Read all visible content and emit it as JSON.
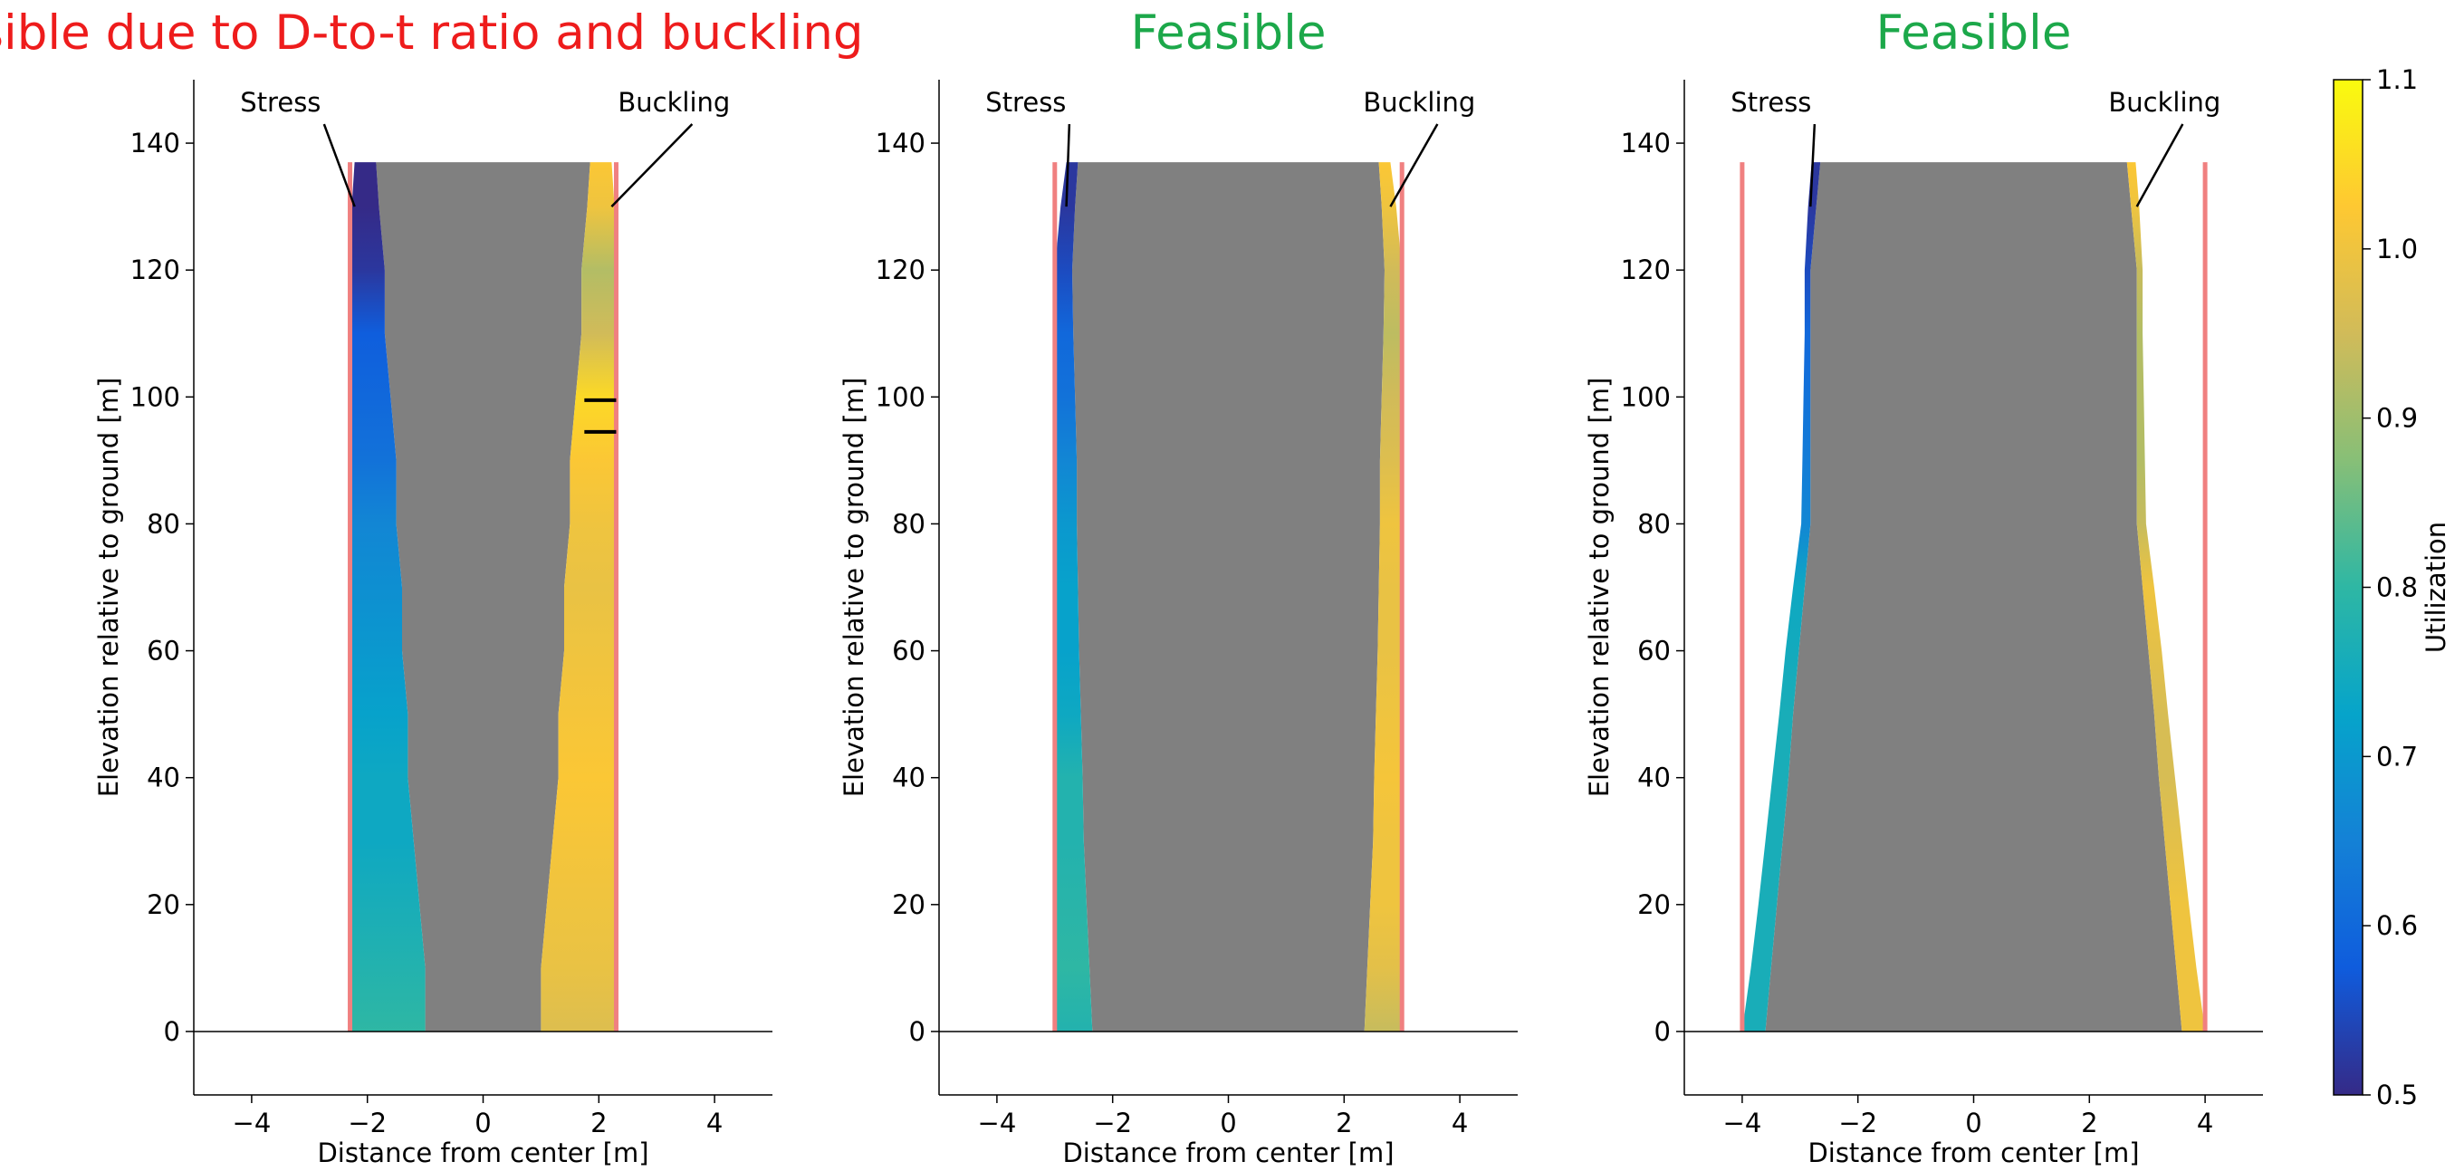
{
  "chart_data": {
    "panels": [
      {
        "type": "area",
        "title": "Infeasible due to D-to-t ratio and buckling",
        "title_color": "#ee1c1c",
        "xlabel": "Distance from center [m]",
        "ylabel": "Elevation relative to ground [m]",
        "xlim": [
          -5,
          5
        ],
        "ylim": [
          -10,
          150
        ],
        "xticks": [
          -4,
          -2,
          0,
          2,
          4
        ],
        "yticks": [
          0,
          20,
          40,
          60,
          80,
          100,
          120,
          140
        ],
        "outer_diameter_limit": 2.3,
        "tower_top": 137,
        "annotations": [
          {
            "text": "Stress",
            "point": [
              -2.22,
              130
            ],
            "text_pos": [
              -3.5,
              145
            ]
          },
          {
            "text": "Buckling",
            "point": [
              2.22,
              130
            ],
            "text_pos": [
              3.3,
              145
            ]
          }
        ],
        "flagged_segments": [
          99.5,
          94.5
        ],
        "series": [
          {
            "name": "outer_radius",
            "z": [
              0,
              10,
              20,
              30,
              40,
              50,
              60,
              70,
              80,
              90,
              100,
              110,
              120,
              130,
              137
            ],
            "r": [
              2.3,
              2.3,
              2.3,
              2.3,
              2.3,
              2.3,
              2.3,
              2.3,
              2.3,
              2.3,
              2.3,
              2.3,
              2.3,
              2.27,
              2.22
            ]
          },
          {
            "name": "inner_radius",
            "z": [
              0,
              10,
              20,
              30,
              40,
              50,
              60,
              70,
              80,
              90,
              100,
              110,
              120,
              130,
              137
            ],
            "r": [
              1.0,
              1.0,
              1.1,
              1.2,
              1.3,
              1.3,
              1.4,
              1.4,
              1.5,
              1.5,
              1.6,
              1.7,
              1.7,
              1.8,
              1.85
            ]
          },
          {
            "name": "stress_utilization",
            "z": [
              0,
              10,
              20,
              30,
              40,
              50,
              60,
              70,
              80,
              90,
              100,
              110,
              120,
              130,
              137
            ],
            "u": [
              0.8,
              0.78,
              0.76,
              0.74,
              0.74,
              0.72,
              0.7,
              0.68,
              0.66,
              0.62,
              0.6,
              0.58,
              0.52,
              0.5,
              0.5
            ]
          },
          {
            "name": "buckling_utilization",
            "z": [
              0,
              10,
              20,
              30,
              40,
              50,
              60,
              70,
              80,
              90,
              100,
              110,
              120,
              130,
              137
            ],
            "u": [
              0.97,
              0.99,
              1.0,
              1.01,
              1.02,
              1.01,
              1.0,
              0.99,
              1.0,
              1.02,
              1.05,
              0.95,
              0.92,
              1.0,
              1.02
            ]
          }
        ]
      },
      {
        "type": "area",
        "title": "Feasible",
        "title_color": "#1ca84a",
        "xlabel": "Distance from center [m]",
        "ylabel": "Elevation relative to ground [m]",
        "xlim": [
          -5,
          5
        ],
        "ylim": [
          -10,
          150
        ],
        "xticks": [
          -4,
          -2,
          0,
          2,
          4
        ],
        "yticks": [
          0,
          20,
          40,
          60,
          80,
          100,
          120,
          140
        ],
        "outer_diameter_limit": 3.0,
        "tower_top": 137,
        "annotations": [
          {
            "text": "Stress",
            "point": [
              -2.8,
              130
            ],
            "text_pos": [
              -3.5,
              145
            ]
          },
          {
            "text": "Buckling",
            "point": [
              2.8,
              130
            ],
            "text_pos": [
              3.3,
              145
            ]
          }
        ],
        "flagged_segments": [],
        "series": [
          {
            "name": "outer_radius",
            "z": [
              0,
              10,
              20,
              30,
              40,
              50,
              60,
              70,
              80,
              90,
              100,
              110,
              120,
              130,
              137
            ],
            "r": [
              3.0,
              3.0,
              3.0,
              3.0,
              3.0,
              3.0,
              3.0,
              3.0,
              3.0,
              3.0,
              3.0,
              3.0,
              3.0,
              2.9,
              2.8
            ]
          },
          {
            "name": "inner_radius",
            "z": [
              0,
              10,
              20,
              30,
              40,
              50,
              60,
              70,
              80,
              90,
              100,
              110,
              120,
              130,
              137
            ],
            "r": [
              2.35,
              2.4,
              2.45,
              2.5,
              2.52,
              2.55,
              2.58,
              2.6,
              2.62,
              2.62,
              2.65,
              2.68,
              2.7,
              2.65,
              2.6
            ]
          },
          {
            "name": "stress_utilization",
            "z": [
              0,
              10,
              20,
              30,
              40,
              50,
              60,
              70,
              80,
              90,
              100,
              110,
              120,
              130,
              137
            ],
            "u": [
              0.78,
              0.8,
              0.79,
              0.78,
              0.78,
              0.74,
              0.72,
              0.72,
              0.7,
              0.66,
              0.62,
              0.6,
              0.55,
              0.52,
              0.52
            ]
          },
          {
            "name": "buckling_utilization",
            "z": [
              0,
              10,
              20,
              30,
              40,
              50,
              60,
              70,
              80,
              90,
              100,
              110,
              120,
              130,
              137
            ],
            "u": [
              0.94,
              0.98,
              1.0,
              1.0,
              1.01,
              1.0,
              0.99,
              0.99,
              1.0,
              0.97,
              0.95,
              0.93,
              0.95,
              1.0,
              1.02
            ]
          }
        ]
      },
      {
        "type": "area",
        "title": "Feasible",
        "title_color": "#1ca84a",
        "xlabel": "Distance from center [m]",
        "ylabel": "Elevation relative to ground [m]",
        "xlim": [
          -5,
          5
        ],
        "ylim": [
          -10,
          150
        ],
        "xticks": [
          -4,
          -2,
          0,
          2,
          4
        ],
        "yticks": [
          0,
          20,
          40,
          60,
          80,
          100,
          120,
          140
        ],
        "outer_diameter_limit": 4.0,
        "tower_top": 137,
        "annotations": [
          {
            "text": "Stress",
            "point": [
              -2.82,
              130
            ],
            "text_pos": [
              -3.5,
              145
            ]
          },
          {
            "text": "Buckling",
            "point": [
              2.82,
              130
            ],
            "text_pos": [
              3.3,
              145
            ]
          }
        ],
        "flagged_segments": [],
        "series": [
          {
            "name": "outer_radius",
            "z": [
              0,
              10,
              20,
              30,
              40,
              50,
              60,
              70,
              80,
              90,
              100,
              110,
              120,
              130,
              137
            ],
            "r": [
              4.0,
              3.85,
              3.72,
              3.6,
              3.48,
              3.36,
              3.25,
              3.12,
              2.98,
              2.96,
              2.94,
              2.92,
              2.92,
              2.86,
              2.8
            ]
          },
          {
            "name": "inner_radius",
            "z": [
              0,
              10,
              20,
              30,
              40,
              50,
              60,
              70,
              80,
              90,
              100,
              110,
              120,
              130,
              137
            ],
            "r": [
              3.6,
              3.5,
              3.4,
              3.3,
              3.2,
              3.12,
              3.02,
              2.92,
              2.82,
              2.82,
              2.82,
              2.82,
              2.82,
              2.72,
              2.65
            ]
          },
          {
            "name": "stress_utilization",
            "z": [
              0,
              10,
              20,
              30,
              40,
              50,
              60,
              70,
              80,
              90,
              100,
              110,
              120,
              130,
              137
            ],
            "u": [
              0.76,
              0.76,
              0.76,
              0.76,
              0.76,
              0.76,
              0.75,
              0.74,
              0.66,
              0.64,
              0.62,
              0.6,
              0.55,
              0.52,
              0.52
            ]
          },
          {
            "name": "buckling_utilization",
            "z": [
              0,
              10,
              20,
              30,
              40,
              50,
              60,
              70,
              80,
              90,
              100,
              110,
              120,
              130,
              137
            ],
            "u": [
              1.0,
              1.0,
              1.0,
              0.98,
              0.96,
              0.96,
              0.98,
              1.0,
              0.94,
              0.92,
              0.92,
              0.92,
              0.94,
              1.0,
              1.02
            ]
          }
        ]
      }
    ],
    "colorbar": {
      "label": "Utilization",
      "min": 0.5,
      "max": 1.1,
      "ticks": [
        0.5,
        0.6,
        0.7,
        0.8,
        0.9,
        1.0,
        1.1
      ],
      "colormap": "parula",
      "colors": [
        "#352a87",
        "#0f5cdd",
        "#1481d6",
        "#06a4ca",
        "#2eb7a4",
        "#87bf77",
        "#d1bb59",
        "#fec832",
        "#f9fb0e"
      ]
    },
    "limit_line_color": "#f08080",
    "tower_fill_color": "#808080"
  }
}
